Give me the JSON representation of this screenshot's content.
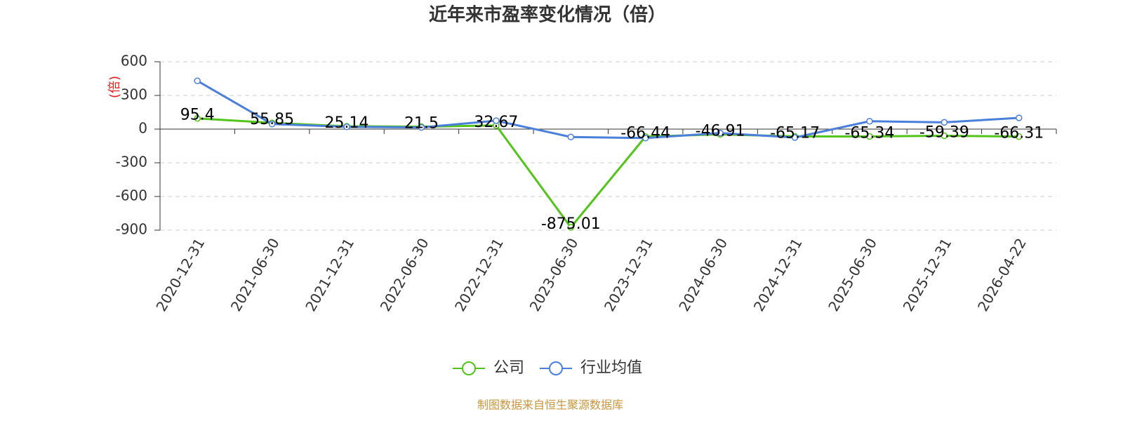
{
  "chart_data": {
    "type": "line",
    "title": "近年来市盈率变化情况（倍）",
    "y_label": "(倍)",
    "categories": [
      "2020-12-31",
      "2021-06-30",
      "2021-12-31",
      "2022-06-30",
      "2022-12-31",
      "2023-06-30",
      "2023-12-31",
      "2024-06-30",
      "2024-12-31",
      "2025-06-30",
      "2025-12-31",
      "2026-04-22"
    ],
    "series": [
      {
        "name": "公司",
        "color": "#52c41a",
        "values": [
          95.4,
          55.85,
          25.14,
          21.5,
          32.67,
          -875.01,
          -66.44,
          -46.91,
          -65.17,
          -65.34,
          -59.39,
          -66.31
        ],
        "show_labels": true
      },
      {
        "name": "行业均值",
        "color": "#4a7fdc",
        "values": [
          430,
          45,
          20,
          15,
          75,
          -70,
          -80,
          -35,
          -75,
          70,
          60,
          100
        ],
        "show_labels": false
      }
    ],
    "ylim": [
      -900,
      600
    ],
    "yticks": [
      -900,
      -600,
      -300,
      0,
      300,
      600
    ],
    "grid": true,
    "source": "制图数据来自恒生聚源数据库"
  }
}
